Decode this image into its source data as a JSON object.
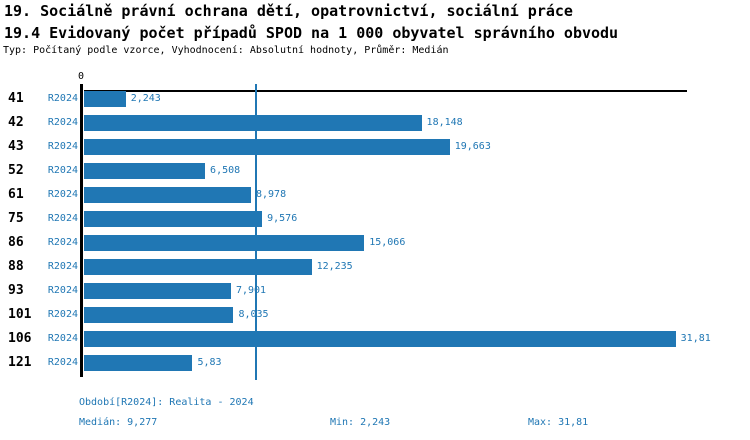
{
  "header": {
    "title_line1": "19. Sociálně právní ochrana dětí, opatrovnictví, sociální práce",
    "title_line2": "19.4 Evidovaný počet případů SPOD na 1 000 obyvatel správního obvodu",
    "subtitle": "Typ: Počítaný podle vzorce, Vyhodnocení: Absolutní hodnoty, Průměr: Medián"
  },
  "chart_data": {
    "type": "bar",
    "orientation": "horizontal",
    "title": "19.4 Evidovaný počet případů SPOD na 1 000 obyvatel správního obvodu",
    "series_label": "R2024",
    "categories": [
      "41",
      "42",
      "43",
      "52",
      "61",
      "75",
      "86",
      "88",
      "93",
      "101",
      "106",
      "121"
    ],
    "values": [
      2.243,
      18.148,
      19.663,
      6.508,
      8.978,
      9.576,
      15.066,
      12.235,
      7.901,
      8.035,
      31.81,
      5.83
    ],
    "value_labels": [
      "2,243",
      "18,148",
      "19,663",
      "6,508",
      "8,978",
      "9,576",
      "15,066",
      "12,235",
      "7,901",
      "8,035",
      "31,81",
      "5,83"
    ],
    "axis": {
      "zero_tick": "0",
      "x_min": 0,
      "x_max": 32.4,
      "median_value": 9.277,
      "grid": false
    },
    "legend_position": "none",
    "bar_color": "#2077b4",
    "median_line_color": "#2077b4"
  },
  "footer": {
    "period": "Období[R2024]: Realita - 2024",
    "median": "Medián: 9,277",
    "min": "Min: 2,243",
    "max": "Max: 31,81"
  }
}
